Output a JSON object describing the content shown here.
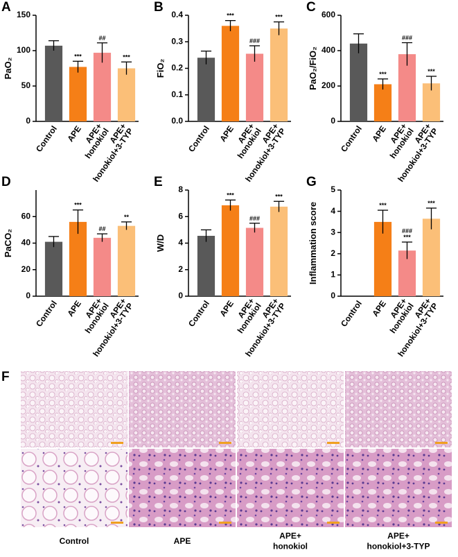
{
  "chart_data": [
    {
      "panel": "A",
      "type": "bar",
      "ylabel": "PaO₂",
      "categories": [
        "Control",
        "APE",
        "APE+ honokiol",
        "APE+ honokiol+3-TYP"
      ],
      "values": [
        107,
        77,
        97,
        75
      ],
      "errors": [
        7,
        8,
        14,
        9
      ],
      "annotations": [
        null,
        [
          "***"
        ],
        [
          "##"
        ],
        [
          "***"
        ]
      ],
      "colors": [
        "#595959",
        "#f57f17",
        "#f48a88",
        "#fbbf78"
      ],
      "ylim": [
        0,
        150
      ],
      "yticks": [
        0,
        50,
        100,
        150
      ]
    },
    {
      "panel": "B",
      "type": "bar",
      "ylabel": "FiO₂",
      "categories": [
        "Control",
        "APE",
        "APE+ honokiol",
        "APE+ honokiol+3-TYP"
      ],
      "values": [
        0.24,
        0.36,
        0.255,
        0.35
      ],
      "errors": [
        0.025,
        0.02,
        0.03,
        0.025
      ],
      "annotations": [
        null,
        [
          "***"
        ],
        [
          "###"
        ],
        [
          "***"
        ]
      ],
      "colors": [
        "#595959",
        "#f57f17",
        "#f48a88",
        "#fbbf78"
      ],
      "ylim": [
        0,
        0.4
      ],
      "yticks": [
        {
          "value": 0,
          "label": "0.0"
        },
        0.1,
        0.2,
        0.3,
        0.4
      ]
    },
    {
      "panel": "C",
      "type": "bar",
      "ylabel": "PaO₂/FiO₂",
      "categories": [
        "Control",
        "APE",
        "APE+ honokiol",
        "APE+ honokiol+3-TYP"
      ],
      "values": [
        440,
        210,
        380,
        215
      ],
      "errors": [
        55,
        30,
        65,
        40
      ],
      "annotations": [
        null,
        [
          "***"
        ],
        [
          "###"
        ],
        [
          "***"
        ]
      ],
      "colors": [
        "#595959",
        "#f57f17",
        "#f48a88",
        "#fbbf78"
      ],
      "ylim": [
        0,
        600
      ],
      "yticks": [
        0,
        200,
        400,
        600
      ]
    },
    {
      "panel": "D",
      "type": "bar",
      "ylabel": "PaCO₂",
      "categories": [
        "Control",
        "APE",
        "APE+ honokiol",
        "APE+ honokiol+3-TYP"
      ],
      "values": [
        41,
        56,
        44,
        53
      ],
      "errors": [
        4,
        9,
        3,
        3
      ],
      "annotations": [
        null,
        [
          "***"
        ],
        [
          "##"
        ],
        [
          "**"
        ]
      ],
      "colors": [
        "#595959",
        "#f57f17",
        "#f48a88",
        "#fbbf78"
      ],
      "ylim": [
        0,
        80
      ],
      "yticks": [
        0,
        20,
        40,
        60
      ]
    },
    {
      "panel": "E",
      "type": "bar",
      "ylabel": "W/D",
      "categories": [
        "Control",
        "APE",
        "APE+ honokiol",
        "APE+ honokiol+3-TYP"
      ],
      "values": [
        4.55,
        6.85,
        5.15,
        6.75
      ],
      "errors": [
        0.45,
        0.4,
        0.35,
        0.4
      ],
      "annotations": [
        null,
        [
          "***"
        ],
        [
          "###"
        ],
        [
          "***"
        ]
      ],
      "colors": [
        "#595959",
        "#f57f17",
        "#f48a88",
        "#fbbf78"
      ],
      "ylim": [
        0,
        8
      ],
      "yticks": [
        0,
        2,
        4,
        6,
        8
      ]
    },
    {
      "panel": "G",
      "type": "bar",
      "ylabel": "Inflammation score",
      "categories": [
        "Control",
        "APE",
        "APE+ honokiol",
        "APE+ honokiol+3-TYP"
      ],
      "values": [
        0,
        3.5,
        2.15,
        3.65
      ],
      "errors": [
        null,
        0.55,
        0.4,
        0.5
      ],
      "annotations": [
        null,
        [
          "***"
        ],
        [
          "###",
          "***"
        ],
        [
          "***"
        ]
      ],
      "colors": [
        "#595959",
        "#f57f17",
        "#f48a88",
        "#fbbf78"
      ],
      "ylim": [
        0,
        5
      ],
      "yticks": [
        0,
        1,
        2,
        3,
        4,
        5
      ]
    }
  ],
  "histology": {
    "panel": "F",
    "labels": [
      "Control",
      "APE",
      "APE+ honokiol",
      "APE+ honokiol+3-TYP"
    ]
  }
}
